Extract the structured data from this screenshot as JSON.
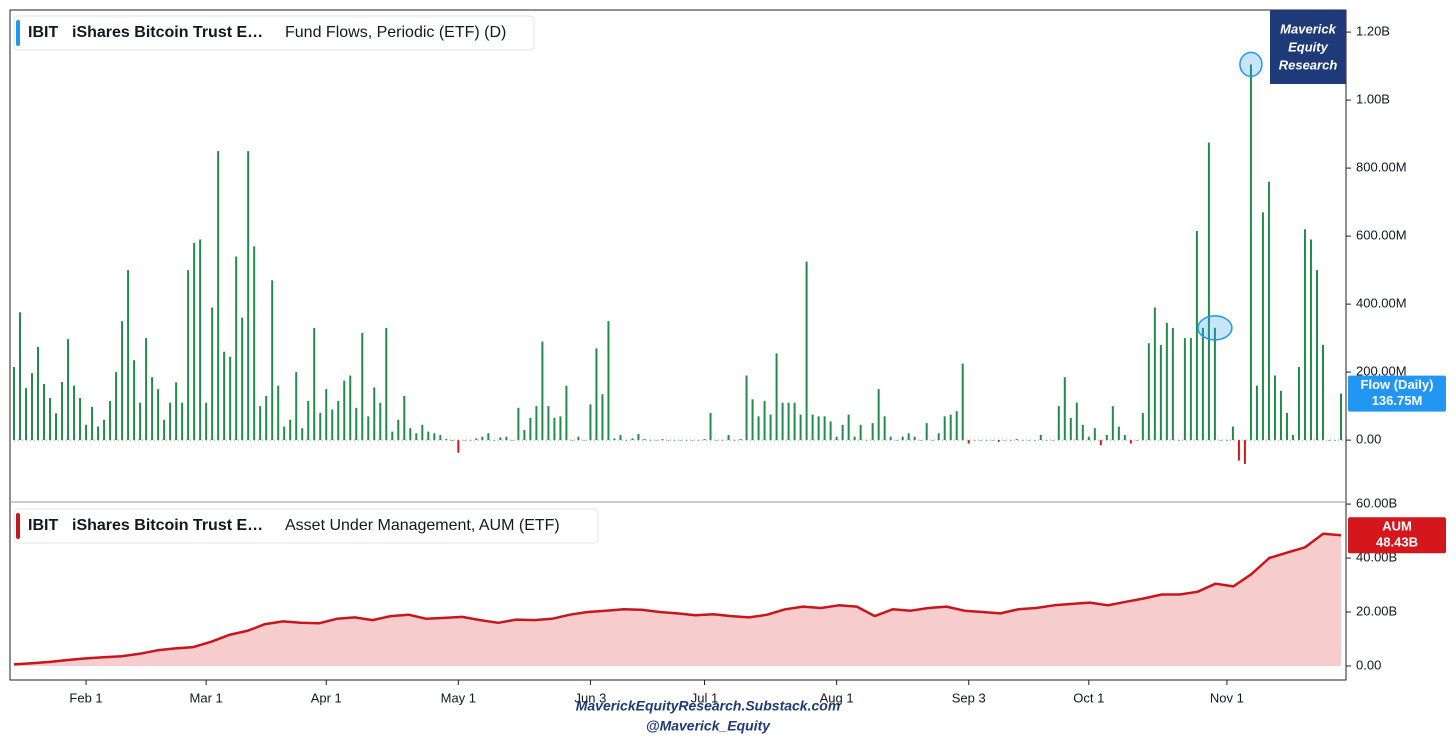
{
  "chart_data": [
    {
      "type": "bar",
      "ticker": "IBIT",
      "name": "iShares Bitcoin Trust E…",
      "title": "Fund Flows, Periodic (ETF) (D)",
      "color_up": "#228b4c",
      "color_down": "#d3171c",
      "values": [
        215,
        376,
        153,
        197,
        274,
        165,
        124,
        79,
        171,
        297,
        160,
        124,
        45,
        98,
        40,
        60,
        115,
        200,
        350,
        500,
        235,
        110,
        300,
        185,
        150,
        60,
        110,
        170,
        110,
        500,
        580,
        590,
        110,
        390,
        850,
        260,
        245,
        540,
        360,
        850,
        570,
        100,
        130,
        470,
        160,
        40,
        60,
        200,
        35,
        115,
        330,
        80,
        150,
        90,
        115,
        175,
        190,
        95,
        315,
        70,
        155,
        110,
        330,
        25,
        60,
        130,
        35,
        20,
        45,
        25,
        20,
        15,
        3,
        -2,
        -37,
        0,
        0,
        5,
        10,
        20,
        0,
        8,
        10,
        0,
        95,
        30,
        65,
        100,
        290,
        100,
        65,
        70,
        160,
        0,
        10,
        0,
        105,
        270,
        135,
        350,
        5,
        15,
        0,
        5,
        18,
        3,
        0,
        0,
        3,
        0,
        0,
        0,
        0,
        0,
        0,
        3,
        80,
        0,
        0,
        15,
        0,
        3,
        190,
        120,
        70,
        115,
        75,
        255,
        110,
        110,
        110,
        75,
        525,
        75,
        70,
        70,
        55,
        10,
        45,
        75,
        10,
        45,
        0,
        50,
        150,
        70,
        10,
        0,
        10,
        20,
        10,
        0,
        50,
        0,
        20,
        70,
        75,
        85,
        225,
        -10,
        0,
        0,
        0,
        0,
        -5,
        0,
        0,
        3,
        0,
        0,
        0,
        15,
        0,
        0,
        100,
        185,
        65,
        110,
        45,
        10,
        35,
        -15,
        15,
        100,
        40,
        15,
        -10,
        0,
        80,
        285,
        390,
        280,
        345,
        330,
        0,
        300,
        300,
        615,
        330,
        875,
        330,
        0,
        0,
        40,
        -60,
        -70,
        1105,
        160,
        670,
        760,
        190,
        145,
        80,
        15,
        215,
        620,
        590,
        500,
        280,
        0,
        0,
        136.75
      ],
      "last_title": "Flow (Daily)",
      "last_label": "136.75M",
      "badge_color": "#2196f3",
      "highlights": [
        200,
        206
      ],
      "ylim": [
        -182,
        1265
      ],
      "yticks": [
        {
          "value": 0,
          "label": "0.00"
        },
        {
          "value": 200,
          "label": "200.00M"
        },
        {
          "value": 400,
          "label": "400.00M"
        },
        {
          "value": 600,
          "label": "600.00M"
        },
        {
          "value": 800,
          "label": "800.00M"
        },
        {
          "value": 1000,
          "label": "1.00B"
        },
        {
          "value": 1200,
          "label": "1.20B"
        }
      ],
      "xticks": [
        {
          "value": 12,
          "label": "Feb 1"
        },
        {
          "value": 32,
          "label": "Mar 1"
        },
        {
          "value": 52,
          "label": "Apr 1"
        },
        {
          "value": 74,
          "label": "May 1"
        },
        {
          "value": 96,
          "label": "Jun 3"
        },
        {
          "value": 115,
          "label": "Jul 1"
        },
        {
          "value": 137,
          "label": "Aug 1"
        },
        {
          "value": 159,
          "label": "Sep 3"
        },
        {
          "value": 179,
          "label": "Oct 1"
        },
        {
          "value": 202,
          "label": "Nov 1"
        }
      ]
    },
    {
      "type": "area",
      "ticker": "IBIT",
      "name": "iShares Bitcoin Trust E…",
      "title": "Asset Under Management, AUM (ETF)",
      "color": "#c8161d",
      "fill": "#f6cccc",
      "values": [
        0.6,
        1.0,
        1.5,
        2.2,
        2.8,
        3.2,
        3.6,
        4.5,
        5.8,
        6.5,
        7.0,
        9.0,
        11.5,
        13.0,
        15.5,
        16.5,
        16.0,
        15.8,
        17.5,
        18.0,
        17.0,
        18.5,
        19.0,
        17.5,
        17.8,
        18.2,
        17.0,
        16.0,
        17.2,
        17.0,
        17.5,
        19.0,
        20.0,
        20.5,
        21.0,
        20.8,
        20.0,
        19.5,
        18.8,
        19.2,
        18.5,
        18.0,
        19.0,
        21.0,
        22.0,
        21.5,
        22.5,
        22.0,
        18.5,
        21.0,
        20.5,
        21.5,
        22.0,
        20.5,
        20.0,
        19.5,
        21.0,
        21.5,
        22.5,
        23.0,
        23.5,
        22.5,
        23.8,
        25.0,
        26.5,
        26.5,
        27.5,
        30.5,
        29.5,
        34.0,
        40.0,
        42.0,
        44.0,
        49.0,
        48.43
      ],
      "last_title": "AUM",
      "last_label": "48.43B",
      "badge_color": "#d3171c",
      "ylim": [
        -5.2,
        60.4
      ],
      "yticks": [
        {
          "value": 0,
          "label": "0.00"
        },
        {
          "value": 20,
          "label": "20.00B"
        },
        {
          "value": 40,
          "label": "40.00B"
        },
        {
          "value": 60,
          "label": "60.00B"
        }
      ]
    }
  ],
  "logo": [
    "Maverick",
    "Equity",
    "Research"
  ],
  "footer": [
    "MaverickEquityResearch.Substack.com",
    "@Maverick_Equity"
  ]
}
